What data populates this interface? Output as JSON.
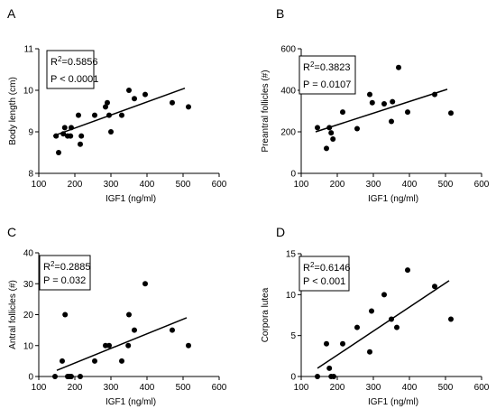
{
  "chart_data": [
    {
      "panel": "A",
      "type": "scatter",
      "xlabel": "IGF1 (ng/ml)",
      "ylabel": "Body length (cm)",
      "xlim": [
        100,
        600
      ],
      "ylim": [
        8,
        11
      ],
      "xticks": [
        100,
        200,
        300,
        400,
        500,
        600
      ],
      "yticks": [
        8,
        9,
        10,
        11
      ],
      "stats": {
        "r2_prefix": "R",
        "r2_sup": "2",
        "r2_value": "=0.5856",
        "p": "P < 0.0001"
      },
      "points": [
        [
          148,
          8.9
        ],
        [
          155,
          8.5
        ],
        [
          168,
          8.95
        ],
        [
          172,
          9.1
        ],
        [
          180,
          8.9
        ],
        [
          188,
          8.9
        ],
        [
          190,
          9.1
        ],
        [
          210,
          9.4
        ],
        [
          215,
          8.7
        ],
        [
          218,
          8.9
        ],
        [
          255,
          9.4
        ],
        [
          285,
          9.6
        ],
        [
          290,
          9.7
        ],
        [
          295,
          9.4
        ],
        [
          300,
          9.0
        ],
        [
          330,
          9.4
        ],
        [
          350,
          10.0
        ],
        [
          365,
          9.8
        ],
        [
          395,
          9.9
        ],
        [
          470,
          9.7
        ],
        [
          515,
          9.6
        ]
      ],
      "fit": {
        "x": [
          140,
          505
        ],
        "y": [
          8.9,
          10.05
        ]
      }
    },
    {
      "panel": "B",
      "type": "scatter",
      "xlabel": "IGF1 (ng/ml)",
      "ylabel": "Preantral follicles (#)",
      "xlim": [
        100,
        600
      ],
      "ylim": [
        0,
        600
      ],
      "xticks": [
        100,
        200,
        300,
        400,
        500,
        600
      ],
      "yticks": [
        0,
        200,
        400,
        600
      ],
      "stats": {
        "r2_prefix": "R",
        "r2_sup": "2",
        "r2_value": "=0.3823",
        "p": "P = 0.0107"
      },
      "points": [
        [
          145,
          220
        ],
        [
          170,
          120
        ],
        [
          178,
          220
        ],
        [
          183,
          195
        ],
        [
          188,
          165
        ],
        [
          215,
          295
        ],
        [
          255,
          215
        ],
        [
          290,
          380
        ],
        [
          297,
          340
        ],
        [
          330,
          335
        ],
        [
          350,
          250
        ],
        [
          353,
          345
        ],
        [
          370,
          510
        ],
        [
          395,
          295
        ],
        [
          470,
          380
        ],
        [
          515,
          290
        ]
      ],
      "fit": {
        "x": [
          140,
          505
        ],
        "y": [
          200,
          405
        ]
      }
    },
    {
      "panel": "C",
      "type": "scatter",
      "xlabel": "IGF1 (ng/ml)",
      "ylabel": "Antral follicles (#)",
      "xlim": [
        100,
        600
      ],
      "ylim": [
        0,
        40
      ],
      "xticks": [
        100,
        200,
        300,
        400,
        500,
        600
      ],
      "yticks": [
        0,
        10,
        20,
        30,
        40
      ],
      "stats": {
        "r2_prefix": "R",
        "r2_sup": "2",
        "r2_value": "=0.2885",
        "p": "P = 0.032"
      },
      "points": [
        [
          145,
          0
        ],
        [
          165,
          5
        ],
        [
          173,
          20
        ],
        [
          180,
          0
        ],
        [
          185,
          0
        ],
        [
          190,
          0
        ],
        [
          215,
          0
        ],
        [
          255,
          5
        ],
        [
          285,
          10
        ],
        [
          295,
          10
        ],
        [
          330,
          5
        ],
        [
          348,
          10
        ],
        [
          350,
          20
        ],
        [
          365,
          15
        ],
        [
          395,
          30
        ],
        [
          470,
          15
        ],
        [
          515,
          10
        ]
      ],
      "fit": {
        "x": [
          150,
          510
        ],
        "y": [
          2,
          19
        ]
      }
    },
    {
      "panel": "D",
      "type": "scatter",
      "xlabel": "IGF1 (ng/ml)",
      "ylabel": "Corpora lutea",
      "xlim": [
        100,
        600
      ],
      "ylim": [
        0,
        15
      ],
      "xticks": [
        100,
        200,
        300,
        400,
        500,
        600
      ],
      "yticks": [
        0,
        5,
        10,
        15
      ],
      "stats": {
        "r2_prefix": "R",
        "r2_sup": "2",
        "r2_value": "=0.6146",
        "p": "P < 0.001"
      },
      "points": [
        [
          145,
          0
        ],
        [
          170,
          4
        ],
        [
          178,
          1
        ],
        [
          183,
          0
        ],
        [
          190,
          0
        ],
        [
          215,
          4
        ],
        [
          255,
          6
        ],
        [
          290,
          3
        ],
        [
          295,
          8
        ],
        [
          330,
          10
        ],
        [
          350,
          7
        ],
        [
          365,
          6
        ],
        [
          395,
          13
        ],
        [
          470,
          11
        ],
        [
          515,
          7
        ]
      ],
      "fit": {
        "x": [
          145,
          510
        ],
        "y": [
          1,
          11.7
        ]
      }
    }
  ]
}
